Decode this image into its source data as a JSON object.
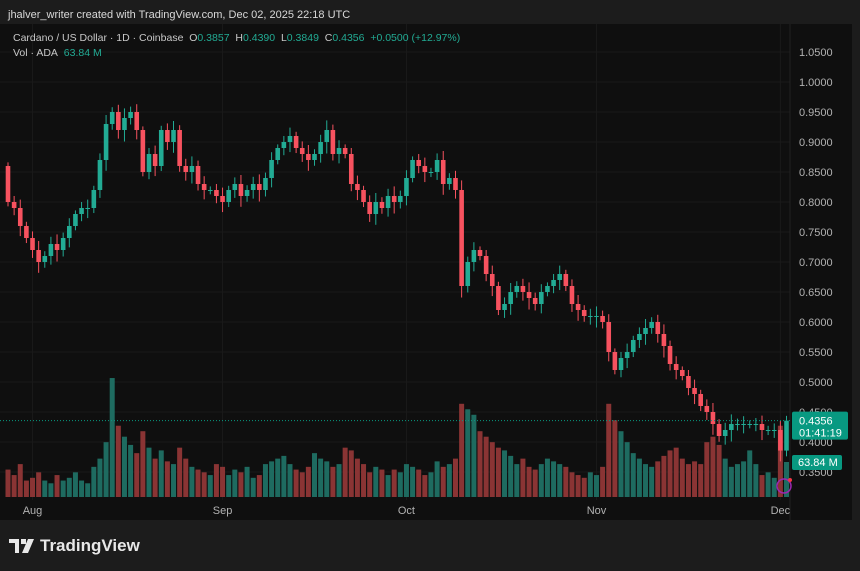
{
  "caption": "jhalver_writer created with TradingView.com, Dec 02, 2025 22:18 UTC",
  "legend": {
    "symbol": "Cardano / US Dollar · 1D · Coinbase",
    "o_label": "O",
    "o": "0.3857",
    "h_label": "H",
    "h": "0.4390",
    "l_label": "L",
    "l": "0.3849",
    "c_label": "C",
    "c": "0.4356",
    "change": "+0.0500 (+12.97%)",
    "vol_label": "Vol · ADA",
    "vol": "63.84 M"
  },
  "price_tag": {
    "price": "0.4356",
    "countdown": "01:41:19"
  },
  "volume_tag": "63.84 M",
  "brand": "TradingView",
  "colors": {
    "up": "#22ab94",
    "down": "#f7525f",
    "up_vol": "#1e6b60",
    "down_vol": "#8a3434",
    "tag": "#089981"
  },
  "chart_data": {
    "type": "candlestick",
    "y_ticks": [
      "1.0500",
      "1.0000",
      "0.9500",
      "0.9000",
      "0.8500",
      "0.8000",
      "0.7500",
      "0.7000",
      "0.6500",
      "0.6000",
      "0.5500",
      "0.5000",
      "0.4500",
      "0.4000",
      "0.3500"
    ],
    "ylim": [
      0.35,
      1.05
    ],
    "x_ticks": [
      {
        "label": "Aug",
        "index": 4
      },
      {
        "label": "Sep",
        "index": 35
      },
      {
        "label": "Oct",
        "index": 65
      },
      {
        "label": "Nov",
        "index": 96
      },
      {
        "label": "Dec",
        "index": 126
      }
    ],
    "first_open": 0.86,
    "close": [
      0.8,
      0.79,
      0.76,
      0.74,
      0.72,
      0.7,
      0.71,
      0.73,
      0.72,
      0.74,
      0.76,
      0.78,
      0.79,
      0.79,
      0.82,
      0.87,
      0.93,
      0.95,
      0.92,
      0.94,
      0.95,
      0.92,
      0.85,
      0.88,
      0.86,
      0.92,
      0.9,
      0.92,
      0.86,
      0.85,
      0.86,
      0.83,
      0.82,
      0.82,
      0.81,
      0.8,
      0.82,
      0.83,
      0.81,
      0.82,
      0.83,
      0.82,
      0.84,
      0.87,
      0.89,
      0.9,
      0.91,
      0.89,
      0.88,
      0.87,
      0.88,
      0.9,
      0.92,
      0.88,
      0.89,
      0.88,
      0.83,
      0.82,
      0.8,
      0.78,
      0.8,
      0.79,
      0.81,
      0.8,
      0.81,
      0.84,
      0.87,
      0.86,
      0.85,
      0.85,
      0.87,
      0.83,
      0.84,
      0.82,
      0.66,
      0.7,
      0.72,
      0.71,
      0.68,
      0.66,
      0.62,
      0.63,
      0.65,
      0.66,
      0.65,
      0.64,
      0.63,
      0.65,
      0.66,
      0.67,
      0.68,
      0.66,
      0.63,
      0.62,
      0.61,
      0.61,
      0.61,
      0.6,
      0.55,
      0.52,
      0.54,
      0.55,
      0.57,
      0.58,
      0.59,
      0.6,
      0.58,
      0.56,
      0.53,
      0.52,
      0.51,
      0.49,
      0.48,
      0.46,
      0.45,
      0.43,
      0.41,
      0.42,
      0.43,
      0.43,
      0.43,
      0.43,
      0.43,
      0.42,
      0.42,
      0.42,
      0.3857,
      0.4356
    ],
    "volume_m": [
      50,
      40,
      60,
      30,
      35,
      45,
      30,
      25,
      40,
      30,
      35,
      45,
      30,
      25,
      55,
      70,
      100,
      217,
      130,
      110,
      95,
      80,
      120,
      90,
      70,
      85,
      65,
      60,
      90,
      70,
      55,
      50,
      45,
      40,
      60,
      55,
      40,
      50,
      45,
      55,
      35,
      40,
      60,
      65,
      70,
      75,
      60,
      50,
      45,
      55,
      80,
      70,
      65,
      55,
      60,
      90,
      85,
      70,
      60,
      45,
      55,
      50,
      40,
      50,
      45,
      60,
      55,
      50,
      40,
      45,
      65,
      55,
      60,
      70,
      170,
      160,
      150,
      120,
      110,
      100,
      90,
      85,
      75,
      60,
      70,
      55,
      50,
      60,
      70,
      65,
      60,
      55,
      45,
      40,
      35,
      45,
      40,
      55,
      170,
      140,
      120,
      100,
      80,
      70,
      60,
      55,
      65,
      75,
      85,
      90,
      70,
      60,
      65,
      60,
      100,
      110,
      95,
      70,
      55,
      60,
      65,
      85,
      60,
      40,
      45,
      35,
      130,
      63.84
    ]
  }
}
